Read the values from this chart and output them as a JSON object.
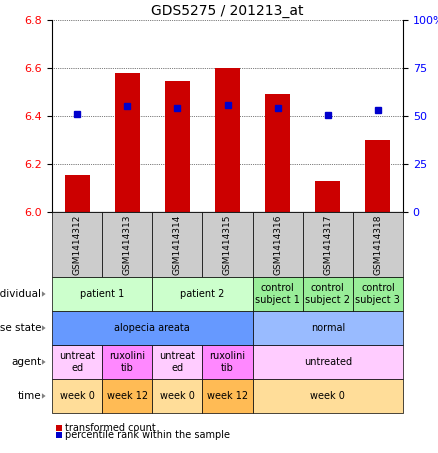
{
  "title": "GDS5275 / 201213_at",
  "samples": [
    "GSM1414312",
    "GSM1414313",
    "GSM1414314",
    "GSM1414315",
    "GSM1414316",
    "GSM1414317",
    "GSM1414318"
  ],
  "bar_values": [
    6.155,
    6.58,
    6.545,
    6.6,
    6.49,
    6.13,
    6.3
  ],
  "bar_base": 6.0,
  "dot_values": [
    6.41,
    6.44,
    6.435,
    6.445,
    6.435,
    6.405,
    6.425
  ],
  "ylim": [
    6.0,
    6.8
  ],
  "y_right_ticks": [
    0,
    25,
    50,
    75,
    100
  ],
  "y_right_tick_positions": [
    6.0,
    6.2,
    6.4,
    6.6,
    6.8
  ],
  "yticks": [
    6.0,
    6.2,
    6.4,
    6.6,
    6.8
  ],
  "bar_color": "#cc0000",
  "dot_color": "#0000cc",
  "bg_color": "#ffffff",
  "plot_bg": "#ffffff",
  "individual_info": [
    {
      "label": "patient 1",
      "span": [
        0,
        2
      ],
      "color": "#ccffcc"
    },
    {
      "label": "patient 2",
      "span": [
        2,
        4
      ],
      "color": "#ccffcc"
    },
    {
      "label": "control\nsubject 1",
      "span": [
        4,
        5
      ],
      "color": "#99ee99"
    },
    {
      "label": "control\nsubject 2",
      "span": [
        5,
        6
      ],
      "color": "#99ee99"
    },
    {
      "label": "control\nsubject 3",
      "span": [
        6,
        7
      ],
      "color": "#99ee99"
    }
  ],
  "disease_info": [
    {
      "label": "alopecia areata",
      "span": [
        0,
        4
      ],
      "color": "#6699ff"
    },
    {
      "label": "normal",
      "span": [
        4,
        7
      ],
      "color": "#99bbff"
    }
  ],
  "agent_info": [
    {
      "label": "untreat\ned",
      "span": [
        0,
        1
      ],
      "color": "#ffccff"
    },
    {
      "label": "ruxolini\ntib",
      "span": [
        1,
        2
      ],
      "color": "#ff88ff"
    },
    {
      "label": "untreat\ned",
      "span": [
        2,
        3
      ],
      "color": "#ffccff"
    },
    {
      "label": "ruxolini\ntib",
      "span": [
        3,
        4
      ],
      "color": "#ff88ff"
    },
    {
      "label": "untreated",
      "span": [
        4,
        7
      ],
      "color": "#ffccff"
    }
  ],
  "time_info": [
    {
      "label": "week 0",
      "span": [
        0,
        1
      ],
      "color": "#ffdd99"
    },
    {
      "label": "week 12",
      "span": [
        1,
        2
      ],
      "color": "#ffbb55"
    },
    {
      "label": "week 0",
      "span": [
        2,
        3
      ],
      "color": "#ffdd99"
    },
    {
      "label": "week 12",
      "span": [
        3,
        4
      ],
      "color": "#ffbb55"
    },
    {
      "label": "week 0",
      "span": [
        4,
        7
      ],
      "color": "#ffdd99"
    }
  ],
  "row_labels": [
    "individual",
    "disease state",
    "agent",
    "time"
  ],
  "legend_items": [
    {
      "label": "transformed count",
      "color": "#cc0000"
    },
    {
      "label": "percentile rank within the sample",
      "color": "#0000cc"
    }
  ],
  "sample_bg": "#cccccc",
  "n_cols": 7
}
